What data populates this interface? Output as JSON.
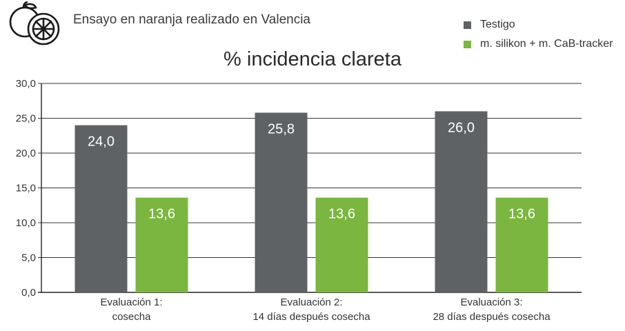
{
  "header": {
    "subtitle": "Ensayo en naranja realizado en Valencia",
    "logo_icon": "orange-fruit-icon"
  },
  "legend": {
    "items": [
      {
        "label": "Testigo",
        "color": "#5f6264"
      },
      {
        "label": "m. silikon + m. CaB-tracker",
        "color": "#7ab640"
      }
    ]
  },
  "chart_data": {
    "type": "bar",
    "title": "% incidencia clareta",
    "xlabel": "",
    "ylabel": "",
    "ylim": [
      0,
      30
    ],
    "yticks": [
      "0,0",
      "5,0",
      "10,0",
      "15,0",
      "20,0",
      "25,0",
      "30,0"
    ],
    "grid": true,
    "legend_position": "top-right",
    "categories": [
      [
        "Evaluación 1:",
        "cosecha"
      ],
      [
        "Evaluación 2:",
        "14 días después cosecha"
      ],
      [
        "Evaluación 3:",
        "28 días después cosecha"
      ]
    ],
    "series": [
      {
        "name": "Testigo",
        "color": "#5f6264",
        "values": [
          24.0,
          25.8,
          26.0
        ],
        "labels": [
          "24,0",
          "25,8",
          "26,0"
        ]
      },
      {
        "name": "m. silikon + m. CaB-tracker",
        "color": "#7ab640",
        "values": [
          13.6,
          13.6,
          13.6
        ],
        "labels": [
          "13,6",
          "13,6",
          "13,6"
        ]
      }
    ]
  }
}
